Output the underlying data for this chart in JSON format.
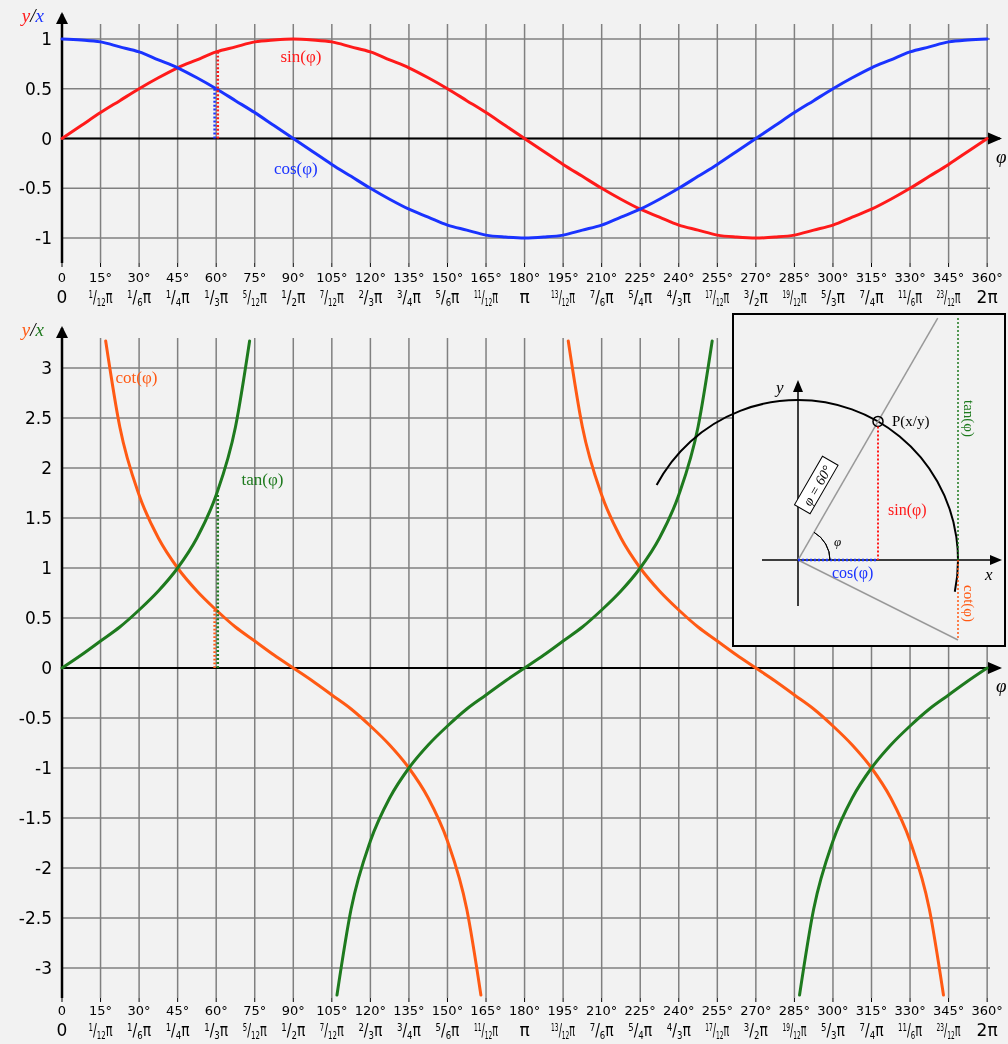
{
  "chart_data": [
    {
      "type": "line",
      "xlabel": "φ",
      "ylabel": "y/x",
      "xlim": [
        0,
        365
      ],
      "ylim": [
        -1.25,
        1.25
      ],
      "grid": true,
      "xticks": [
        0,
        {
          "value": 15,
          "label": "15°"
        },
        {
          "value": 30,
          "label": "30°"
        },
        {
          "value": 45,
          "label": "45°"
        },
        {
          "value": 60,
          "label": "60°"
        },
        {
          "value": 75,
          "label": "75°"
        },
        {
          "value": 90,
          "label": "90°"
        },
        {
          "value": 105,
          "label": "105°"
        },
        {
          "value": 120,
          "label": "120°"
        },
        {
          "value": 135,
          "label": "135°"
        },
        {
          "value": 150,
          "label": "150°"
        },
        {
          "value": 165,
          "label": "165°"
        },
        {
          "value": 180,
          "label": "180°"
        },
        {
          "value": 195,
          "label": "195°"
        },
        {
          "value": 210,
          "label": "210°"
        },
        {
          "value": 225,
          "label": "225°"
        },
        {
          "value": 240,
          "label": "240°"
        },
        {
          "value": 255,
          "label": "255°"
        },
        {
          "value": 270,
          "label": "270°"
        },
        {
          "value": 285,
          "label": "285°"
        },
        {
          "value": 300,
          "label": "300°"
        },
        {
          "value": 315,
          "label": "315°"
        },
        {
          "value": 330,
          "label": "330°"
        },
        {
          "value": 345,
          "label": "345°"
        },
        {
          "value": 360,
          "label": "360°"
        }
      ],
      "x2lim": [
        0,
        6.3705
      ],
      "x2ticks": [
        0,
        {
          "value": 0.2618,
          "label": "$^{1}$/$_{12}$π"
        },
        {
          "value": 0.5236,
          "label": "$^{1}$/$_{6}$π"
        },
        {
          "value": 0.7854,
          "label": "$^{1}$/$_{4}$π"
        },
        {
          "value": 1.0472,
          "label": "$^{1}$/$_{3}$π"
        },
        {
          "value": 1.309,
          "label": "$^{5}$/$_{12}$π"
        },
        {
          "value": 1.5708,
          "label": "$^{1}$/$_{2}$π"
        },
        {
          "value": 1.8326,
          "label": "$^{7}$/$_{12}$π"
        },
        {
          "value": 2.0944,
          "label": "$^{2}$/$_{3}$π"
        },
        {
          "value": 2.3562,
          "label": "$^{3}$/$_{4}$π"
        },
        {
          "value": 2.618,
          "label": "$^{5}$/$_{6}$π"
        },
        {
          "value": 2.8798,
          "label": "$^{11}$/$_{12}$π"
        },
        {
          "value": 3.1416,
          "label": "π"
        },
        {
          "value": 3.4034,
          "label": "$^{13}$/$_{12}$π"
        },
        {
          "value": 3.6652,
          "label": "$^{7}$/$_{6}$π"
        },
        {
          "value": 3.927,
          "label": "$^{5}$/$_{4}$π"
        },
        {
          "value": 4.1888,
          "label": "$^{4}$/$_{3}$π"
        },
        {
          "value": 4.4506,
          "label": "$^{17}$/$_{12}$π"
        },
        {
          "value": 4.7124,
          "label": "$^{3}$/$_{2}$π"
        },
        {
          "value": 4.9742,
          "label": "$^{19}$/$_{12}$π"
        },
        {
          "value": 5.236,
          "label": "$^{5}$/$_{3}$π"
        },
        {
          "value": 5.4978,
          "label": "$^{7}$/$_{4}$π"
        },
        {
          "value": 5.7596,
          "label": "$^{11}$/$_{6}$π"
        },
        {
          "value": 6.0214,
          "label": "$^{23}$/$_{12}$π"
        },
        {
          "value": 6.2832,
          "label": "2π"
        }
      ],
      "yticks": [
        -1,
        -0.5,
        0,
        0.5,
        1
      ],
      "x": [
        0,
        7.5,
        15,
        22.5,
        30,
        37.5,
        45,
        52.5,
        60,
        67.5,
        75,
        82.5,
        90,
        97.5,
        105,
        112.5,
        120,
        127.5,
        135,
        142.5,
        150,
        157.5,
        165,
        172.5,
        180,
        187.5,
        195,
        202.5,
        210,
        217.5,
        225,
        232.5,
        240,
        247.5,
        255,
        262.5,
        270,
        277.5,
        285,
        292.5,
        300,
        307.5,
        315,
        322.5,
        330,
        337.5,
        345,
        352.5,
        360
      ],
      "series": [
        {
          "name": "sin(φ)",
          "color": "#ff1a1a",
          "values": [
            0,
            0.13,
            0.26,
            0.38,
            0.5,
            0.61,
            0.71,
            0.79,
            0.87,
            0.92,
            0.97,
            0.99,
            1,
            0.99,
            0.97,
            0.92,
            0.87,
            0.79,
            0.71,
            0.61,
            0.5,
            0.38,
            0.26,
            0.13,
            0,
            -0.13,
            -0.26,
            -0.38,
            -0.5,
            -0.61,
            -0.71,
            -0.79,
            -0.87,
            -0.92,
            -0.97,
            -0.99,
            -1,
            -0.99,
            -0.97,
            -0.92,
            -0.87,
            -0.79,
            -0.71,
            -0.61,
            -0.5,
            -0.38,
            -0.26,
            -0.13,
            0
          ]
        },
        {
          "name": "cos(φ)",
          "color": "#1a33ff",
          "values": [
            1,
            0.99,
            0.97,
            0.92,
            0.87,
            0.79,
            0.71,
            0.61,
            0.5,
            0.38,
            0.26,
            0.13,
            0,
            -0.13,
            -0.26,
            -0.38,
            -0.5,
            -0.61,
            -0.71,
            -0.79,
            -0.87,
            -0.92,
            -0.97,
            -0.99,
            -1,
            -0.99,
            -0.97,
            -0.92,
            -0.87,
            -0.79,
            -0.71,
            -0.61,
            -0.5,
            -0.38,
            -0.26,
            -0.13,
            0,
            0.13,
            0.26,
            0.38,
            0.5,
            0.61,
            0.71,
            0.79,
            0.87,
            0.92,
            0.97,
            0.99,
            1
          ]
        },
        {
          "color": "#ff1a1a",
          "line_style": "dotted",
          "x": [
            60,
            60
          ],
          "values": [
            0,
            0.87
          ]
        },
        {
          "color": "#1a33ff",
          "line_style": "dotted",
          "x": [
            60,
            60
          ],
          "values": [
            0,
            0.5
          ]
        }
      ]
    },
    {
      "type": "line",
      "xlabel": "φ",
      "ylabel": "y/x",
      "xlim": [
        0,
        365
      ],
      "ylim": [
        -3.3,
        3.4
      ],
      "grid": true,
      "xticks": [
        0,
        {
          "value": 15,
          "label": "15°"
        },
        {
          "value": 30,
          "label": "30°"
        },
        {
          "value": 45,
          "label": "45°"
        },
        {
          "value": 60,
          "label": "60°"
        },
        {
          "value": 75,
          "label": "75°"
        },
        {
          "value": 90,
          "label": "90°"
        },
        {
          "value": 105,
          "label": "105°"
        },
        {
          "value": 120,
          "label": "120°"
        },
        {
          "value": 135,
          "label": "135°"
        },
        {
          "value": 150,
          "label": "150°"
        },
        {
          "value": 165,
          "label": "165°"
        },
        {
          "value": 180,
          "label": "180°"
        },
        {
          "value": 195,
          "label": "195°"
        },
        {
          "value": 210,
          "label": "210°"
        },
        {
          "value": 225,
          "label": "225°"
        },
        {
          "value": 240,
          "label": "240°"
        },
        {
          "value": 255,
          "label": "255°"
        },
        {
          "value": 270,
          "label": "270°"
        },
        {
          "value": 285,
          "label": "285°"
        },
        {
          "value": 300,
          "label": "300°"
        },
        {
          "value": 315,
          "label": "315°"
        },
        {
          "value": 330,
          "label": "330°"
        },
        {
          "value": 345,
          "label": "345°"
        },
        {
          "value": 360,
          "label": "360°"
        }
      ],
      "x2lim": [
        0,
        6.3705
      ],
      "x2ticks": [
        0,
        {
          "value": 0.2618,
          "label": "$^{1}$/$_{12}$π"
        },
        {
          "value": 0.5236,
          "label": "$^{1}$/$_{6}$π"
        },
        {
          "value": 0.7854,
          "label": "$^{1}$/$_{4}$π"
        },
        {
          "value": 1.0472,
          "label": "$^{1}$/$_{3}$π"
        },
        {
          "value": 1.309,
          "label": "$^{5}$/$_{12}$π"
        },
        {
          "value": 1.5708,
          "label": "$^{1}$/$_{2}$π"
        },
        {
          "value": 1.8326,
          "label": "$^{7}$/$_{12}$π"
        },
        {
          "value": 2.0944,
          "label": "$^{2}$/$_{3}$π"
        },
        {
          "value": 2.3562,
          "label": "$^{3}$/$_{4}$π"
        },
        {
          "value": 2.618,
          "label": "$^{5}$/$_{6}$π"
        },
        {
          "value": 2.8798,
          "label": "$^{11}$/$_{12}$π"
        },
        {
          "value": 3.1416,
          "label": "π"
        },
        {
          "value": 3.4034,
          "label": "$^{13}$/$_{12}$π"
        },
        {
          "value": 3.6652,
          "label": "$^{7}$/$_{6}$π"
        },
        {
          "value": 3.927,
          "label": "$^{5}$/$_{4}$π"
        },
        {
          "value": 4.1888,
          "label": "$^{4}$/$_{3}$π"
        },
        {
          "value": 4.4506,
          "label": "$^{17}$/$_{12}$π"
        },
        {
          "value": 4.7124,
          "label": "$^{3}$/$_{2}$π"
        },
        {
          "value": 4.9742,
          "label": "$^{19}$/$_{12}$π"
        },
        {
          "value": 5.236,
          "label": "$^{5}$/$_{3}$π"
        },
        {
          "value": 5.4978,
          "label": "$^{7}$/$_{4}$π"
        },
        {
          "value": 5.7596,
          "label": "$^{11}$/$_{6}$π"
        },
        {
          "value": 6.0214,
          "label": "$^{23}$/$_{12}$π"
        },
        {
          "value": 6.2832,
          "label": "2π"
        }
      ],
      "yticks": [
        -3,
        -2.5,
        -2,
        -1.5,
        -1,
        -0.5,
        0,
        0.5,
        1,
        1.5,
        2,
        2.5,
        3
      ],
      "series": [
        {
          "name": "cot(φ)",
          "color": "#ff5a14",
          "x": [
            17,
            22.5,
            30,
            37.5,
            45,
            52.5,
            60,
            67.5,
            75,
            82.5,
            90,
            97.5,
            105,
            112.5,
            120,
            127.5,
            135,
            142.5,
            150,
            157.5,
            163,
            180,
            197,
            202.5,
            210,
            217.5,
            225,
            232.5,
            240,
            247.5,
            255,
            262.5,
            270,
            277.5,
            285,
            292.5,
            300,
            307.5,
            315,
            322.5,
            330,
            337.5,
            343
          ],
          "values": [
            3.27,
            2.41,
            1.73,
            1.3,
            1,
            0.77,
            0.58,
            0.41,
            0.27,
            0.13,
            0,
            -0.13,
            -0.27,
            -0.41,
            -0.58,
            -0.77,
            -1,
            -1.3,
            -1.73,
            -2.41,
            -3.27,
            null,
            3.27,
            2.41,
            1.73,
            1.3,
            1,
            0.77,
            0.58,
            0.41,
            0.27,
            0.13,
            0,
            -0.13,
            -0.27,
            -0.41,
            -0.58,
            -0.77,
            -1,
            -1.3,
            -1.73,
            -2.41,
            -3.27
          ]
        },
        {
          "name": "tan(φ)",
          "color": "#1e7a1e",
          "x": [
            0,
            7.5,
            15,
            22.5,
            30,
            37.5,
            45,
            52.5,
            60,
            67.5,
            73,
            90,
            107,
            112.5,
            120,
            127.5,
            135,
            142.5,
            150,
            157.5,
            165,
            172.5,
            180,
            187.5,
            195,
            202.5,
            210,
            217.5,
            225,
            232.5,
            240,
            247.5,
            253,
            270,
            287,
            292.5,
            300,
            307.5,
            315,
            322.5,
            330,
            337.5,
            345,
            352.5,
            360
          ],
          "values": [
            0,
            0.13,
            0.27,
            0.41,
            0.58,
            0.77,
            1,
            1.3,
            1.73,
            2.41,
            3.27,
            null,
            -3.27,
            -2.41,
            -1.73,
            -1.3,
            -1,
            -0.77,
            -0.58,
            -0.41,
            -0.27,
            -0.13,
            0,
            0.13,
            0.27,
            0.41,
            0.58,
            0.77,
            1,
            1.3,
            1.73,
            2.41,
            3.27,
            null,
            -3.27,
            -2.41,
            -1.73,
            -1.3,
            -1,
            -0.77,
            -0.58,
            -0.41,
            -0.27,
            -0.13,
            0
          ]
        },
        {
          "color": "#1e7a1e",
          "line_style": "dotted",
          "x": [
            60,
            60
          ],
          "values": [
            0,
            1.73
          ]
        },
        {
          "color": "#ff5a14",
          "line_style": "dotted",
          "x": [
            60,
            60
          ],
          "values": [
            0,
            0.58
          ]
        }
      ],
      "annotations": [
        "y",
        "x",
        "P(x/y)",
        "φ = 60°",
        "φ",
        "sin(φ)",
        "cos(φ)",
        "tan(φ)",
        "cot(φ)"
      ]
    }
  ]
}
